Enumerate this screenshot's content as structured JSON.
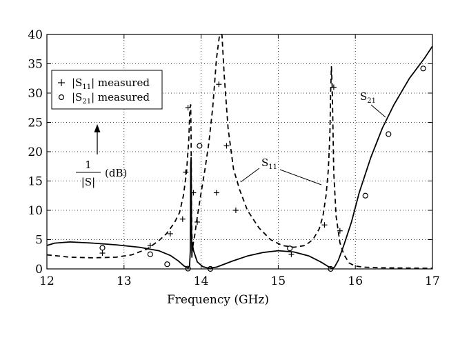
{
  "chart_data": {
    "type": "line",
    "xlabel": "Frequency (GHz)",
    "ylabel_parts": {
      "num": "1",
      "den": "|S|",
      "unit": "(dB)"
    },
    "xlim": [
      12,
      17
    ],
    "ylim": [
      0,
      40
    ],
    "x_ticks": [
      "12",
      "13",
      "14",
      "15",
      "16",
      "17"
    ],
    "y_ticks": [
      "0",
      "5",
      "10",
      "15",
      "20",
      "25",
      "30",
      "35",
      "40"
    ],
    "grid": true,
    "legend_position": "top-left",
    "legend": [
      {
        "symbol": "plus",
        "prefix": "|S",
        "sub": "11",
        "suffix": "| measured"
      },
      {
        "symbol": "circle",
        "prefix": "|S",
        "sub": "21",
        "suffix": "| measured"
      }
    ],
    "annotations": {
      "s21": {
        "main": "S",
        "sub": "21"
      },
      "s11": {
        "main": "S",
        "sub": "11"
      }
    },
    "series": [
      {
        "key": "s11_sim",
        "style": "dashed",
        "x": [
          12.0,
          12.3,
          12.6,
          12.9,
          13.1,
          13.3,
          13.45,
          13.55,
          13.65,
          13.72,
          13.77,
          13.81,
          13.84,
          13.855,
          13.865,
          13.87,
          13.875,
          13.88,
          13.89,
          13.9,
          13.92,
          13.94,
          13.97,
          14.0,
          14.05,
          14.1,
          14.15,
          14.2,
          14.24,
          14.27,
          14.3,
          14.35,
          14.42,
          14.5,
          14.6,
          14.75,
          14.9,
          15.05,
          15.2,
          15.35,
          15.45,
          15.53,
          15.58,
          15.62,
          15.65,
          15.67,
          15.68,
          15.69,
          15.7,
          15.72,
          15.75,
          15.8,
          15.85,
          15.92,
          16.0,
          16.1,
          16.3,
          16.6,
          17.0
        ],
        "y": [
          2.4,
          2.0,
          1.9,
          2.0,
          2.4,
          3.4,
          4.8,
          6.0,
          7.8,
          9.6,
          12.5,
          16.5,
          22.0,
          27.5,
          28.0,
          22.0,
          12.0,
          6.0,
          3.5,
          4.5,
          6.0,
          8.0,
          10.5,
          13.0,
          17.0,
          21.5,
          27.5,
          36.0,
          40.0,
          40.0,
          33.0,
          24.0,
          17.0,
          13.5,
          10.0,
          7.0,
          5.0,
          4.0,
          3.7,
          4.0,
          5.0,
          6.8,
          9.0,
          12.5,
          17.0,
          23.0,
          30.0,
          34.5,
          31.0,
          16.5,
          9.0,
          4.5,
          2.5,
          1.0,
          0.5,
          0.3,
          0.2,
          0.15,
          0.1
        ]
      },
      {
        "key": "s21_sim",
        "style": "solid",
        "x": [
          12.0,
          12.1,
          12.3,
          12.6,
          12.9,
          13.2,
          13.45,
          13.6,
          13.7,
          13.78,
          13.83,
          13.85,
          13.86,
          13.865,
          13.87,
          13.875,
          13.88,
          13.885,
          13.89,
          13.9,
          13.95,
          14.02,
          14.1,
          14.2,
          14.4,
          14.6,
          14.8,
          15.0,
          15.2,
          15.4,
          15.55,
          15.65,
          15.7,
          15.73,
          15.78,
          15.85,
          15.95,
          16.05,
          16.2,
          16.35,
          16.5,
          16.7,
          16.9,
          17.0
        ],
        "y": [
          4.0,
          4.4,
          4.6,
          4.4,
          4.1,
          3.7,
          3.1,
          2.3,
          1.4,
          0.5,
          0.15,
          0.4,
          3.0,
          18.0,
          19.0,
          8.0,
          2.0,
          3.5,
          4.0,
          3.2,
          1.2,
          0.4,
          0.1,
          0.3,
          1.3,
          2.2,
          2.8,
          3.1,
          2.9,
          2.2,
          1.2,
          0.4,
          0.05,
          0.3,
          1.5,
          4.0,
          8.0,
          13.0,
          19.0,
          24.0,
          28.0,
          32.5,
          36.0,
          38.0
        ]
      }
    ],
    "measured_s11": {
      "x": [
        12.72,
        13.34,
        13.6,
        13.76,
        13.8,
        13.83,
        13.9,
        13.95,
        14.2,
        14.23,
        14.33,
        14.45,
        15.17,
        15.6,
        15.72,
        15.8
      ],
      "y": [
        2.7,
        4.0,
        6.0,
        8.5,
        16.5,
        27.5,
        13.0,
        8.0,
        13.0,
        31.5,
        21.0,
        10.0,
        2.5,
        7.5,
        31.0,
        6.5
      ]
    },
    "measured_s21": {
      "x": [
        12.72,
        13.34,
        13.56,
        13.83,
        13.98,
        14.12,
        15.15,
        15.68,
        16.13,
        16.43,
        16.88
      ],
      "y": [
        3.6,
        2.5,
        0.8,
        0.05,
        21.0,
        0.0,
        3.5,
        0.0,
        12.5,
        23.0,
        34.2
      ]
    }
  }
}
